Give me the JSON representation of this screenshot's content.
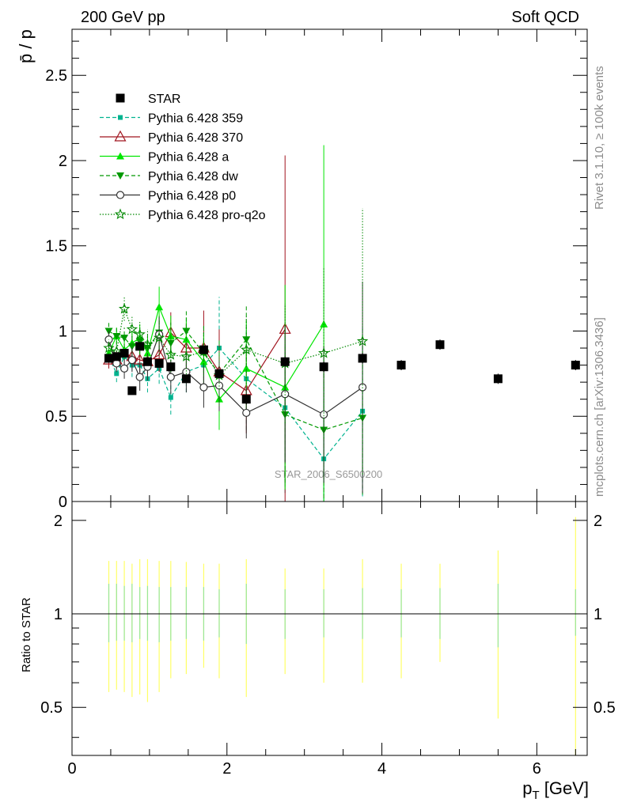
{
  "header": {
    "left": "200 GeV pp",
    "right": "Soft QCD"
  },
  "side_text": {
    "rivet": "Rivet 3.1.10, ≥ 100k events",
    "mcplots": "mcplots.cern.ch [arXiv:1306.3436]"
  },
  "watermark": "STAR_2006_S6500200",
  "chart_data": [
    {
      "type": "scatter",
      "panel": "main",
      "ylabel": "p̄ / p",
      "xlabel": "",
      "xlim": [
        0,
        6.65
      ],
      "ylim": [
        0,
        2.77
      ],
      "yticks": [
        0,
        0.5,
        1,
        1.5,
        2,
        2.5
      ],
      "ytick_labels": [
        "0",
        "0.5",
        "1",
        "1.5",
        "2",
        "2.5"
      ],
      "legend_position": "top-left",
      "series": [
        {
          "name": "STAR",
          "color": "#000000",
          "marker": "square",
          "line": "none",
          "x": [
            0.475,
            0.575,
            0.675,
            0.775,
            0.875,
            0.975,
            1.125,
            1.275,
            1.475,
            1.7,
            1.9,
            2.25,
            2.75,
            3.25,
            3.75,
            4.25,
            4.75,
            5.5,
            6.5
          ],
          "y": [
            0.84,
            0.85,
            0.87,
            0.65,
            0.91,
            0.82,
            0.81,
            0.79,
            0.72,
            0.89,
            0.75,
            0.6,
            0.82,
            0.79,
            0.84,
            0.8,
            0.92,
            0.72,
            0.8
          ],
          "err": [
            0.02,
            0.02,
            0.02,
            0.02,
            0.02,
            0.02,
            0.02,
            0.02,
            0.02,
            0.02,
            0.03,
            0.03,
            0.03,
            0.03,
            0.03,
            0.03,
            0.03,
            0.03,
            0.03
          ]
        },
        {
          "name": "Pythia 6.428 359",
          "color": "#00b38f",
          "marker": "small-square",
          "line": "dashed",
          "x": [
            0.475,
            0.575,
            0.675,
            0.775,
            0.875,
            0.975,
            1.125,
            1.275,
            1.475,
            1.7,
            1.9,
            2.25,
            2.75,
            3.25,
            3.75
          ],
          "y": [
            0.85,
            0.75,
            0.85,
            0.8,
            0.8,
            0.72,
            0.78,
            0.61,
            0.76,
            0.8,
            0.9,
            0.72,
            0.55,
            0.25,
            0.53
          ],
          "err": [
            0.05,
            0.05,
            0.06,
            0.07,
            0.08,
            0.08,
            0.09,
            0.1,
            0.12,
            0.15,
            0.3,
            0.3,
            0.5,
            0.45,
            0.5
          ]
        },
        {
          "name": "Pythia 6.428 370",
          "color": "#a0141e",
          "marker": "open-triangle",
          "line": "solid",
          "x": [
            0.475,
            0.575,
            0.675,
            0.775,
            0.875,
            0.975,
            1.125,
            1.275,
            1.475,
            1.7,
            1.9,
            2.25,
            2.75
          ],
          "y": [
            0.83,
            0.83,
            0.87,
            0.85,
            0.83,
            0.82,
            0.86,
            0.99,
            0.9,
            0.9,
            0.76,
            0.65,
            1.01
          ],
          "err": [
            0.05,
            0.05,
            0.06,
            0.07,
            0.08,
            0.08,
            0.1,
            0.12,
            0.15,
            0.22,
            0.25,
            0.25,
            1.02
          ]
        },
        {
          "name": "Pythia 6.428 a",
          "color": "#00e600",
          "marker": "triangle-up",
          "line": "solid",
          "x": [
            0.475,
            0.575,
            0.675,
            0.775,
            0.875,
            0.975,
            1.125,
            1.275,
            1.475,
            1.7,
            1.9,
            2.25,
            2.75,
            3.25
          ],
          "y": [
            0.87,
            0.97,
            0.89,
            0.93,
            0.96,
            0.87,
            1.14,
            0.97,
            0.95,
            0.82,
            0.6,
            0.78,
            0.67,
            1.04
          ],
          "err": [
            0.05,
            0.05,
            0.06,
            0.07,
            0.08,
            0.1,
            0.12,
            0.12,
            0.13,
            0.17,
            0.18,
            0.28,
            0.6,
            1.05
          ]
        },
        {
          "name": "Pythia 6.428 dw",
          "color": "#009900",
          "marker": "triangle-down",
          "line": "dashed",
          "x": [
            0.475,
            0.575,
            0.675,
            0.775,
            0.875,
            0.975,
            1.125,
            1.275,
            1.475,
            1.7,
            1.9,
            2.25,
            2.75,
            3.25,
            3.75
          ],
          "y": [
            1.0,
            0.97,
            0.96,
            0.91,
            0.94,
            0.9,
            0.99,
            0.93,
            1.0,
            0.87,
            0.75,
            0.95,
            0.51,
            0.42,
            0.49
          ],
          "err": [
            0.05,
            0.05,
            0.06,
            0.07,
            0.08,
            0.09,
            0.1,
            0.12,
            0.13,
            0.16,
            0.2,
            0.2,
            0.4,
            0.4,
            0.45
          ]
        },
        {
          "name": "Pythia 6.428 p0",
          "color": "#333333",
          "marker": "open-circle",
          "line": "solid",
          "x": [
            0.475,
            0.575,
            0.675,
            0.775,
            0.875,
            0.975,
            1.125,
            1.275,
            1.475,
            1.7,
            1.9,
            2.25,
            2.75,
            3.25,
            3.75
          ],
          "y": [
            0.95,
            0.81,
            0.78,
            0.83,
            0.73,
            0.79,
            0.98,
            0.73,
            0.76,
            0.67,
            0.68,
            0.52,
            0.63,
            0.51,
            0.67
          ],
          "err": [
            0.05,
            0.05,
            0.06,
            0.07,
            0.08,
            0.08,
            0.1,
            0.1,
            0.12,
            0.12,
            0.15,
            0.15,
            0.4,
            0.4,
            0.62
          ]
        },
        {
          "name": "Pythia 6.428 pro-q2o",
          "color": "#008800",
          "marker": "open-star",
          "line": "dotted",
          "x": [
            0.475,
            0.575,
            0.675,
            0.775,
            0.875,
            0.975,
            1.125,
            1.275,
            1.475,
            1.7,
            1.9,
            2.25,
            2.75,
            3.25,
            3.75
          ],
          "y": [
            0.9,
            0.88,
            1.13,
            1.01,
            0.98,
            0.92,
            0.96,
            0.86,
            0.85,
            0.88,
            0.74,
            0.89,
            0.81,
            0.87,
            0.94
          ],
          "err": [
            0.05,
            0.05,
            0.07,
            0.08,
            0.08,
            0.09,
            0.1,
            0.1,
            0.12,
            0.14,
            0.18,
            0.2,
            0.35,
            0.5,
            0.78
          ]
        }
      ]
    },
    {
      "type": "scatter",
      "panel": "ratio",
      "ylabel": "Ratio to STAR",
      "xlabel": "p_T [GeV]",
      "xlim": [
        0,
        6.65
      ],
      "ylim": [
        0.35,
        2.3
      ],
      "xticks": [
        0,
        2,
        4,
        6
      ],
      "xtick_labels": [
        "0",
        "2",
        "4",
        "6"
      ],
      "yticks": [
        0.5,
        1,
        2
      ],
      "ytick_labels": [
        "0.5",
        "1",
        "2"
      ],
      "reference_line": 1,
      "bands": {
        "x": [
          0.475,
          0.575,
          0.675,
          0.775,
          0.875,
          0.975,
          1.125,
          1.275,
          1.475,
          1.7,
          1.9,
          2.25,
          2.75,
          3.25,
          3.75,
          4.25,
          4.75,
          5.5,
          6.5
        ],
        "stat_lo": [
          0.81,
          0.82,
          0.82,
          0.81,
          0.83,
          0.82,
          0.81,
          0.82,
          0.83,
          0.82,
          0.84,
          0.8,
          0.83,
          0.84,
          0.83,
          0.84,
          0.83,
          0.78,
          0.85
        ],
        "stat_hi": [
          1.25,
          1.25,
          1.23,
          1.25,
          1.22,
          1.23,
          1.22,
          1.22,
          1.22,
          1.22,
          1.2,
          1.25,
          1.2,
          1.2,
          1.21,
          1.2,
          1.21,
          1.25,
          1.2
        ],
        "total_lo": [
          0.56,
          0.57,
          0.56,
          0.54,
          0.55,
          0.52,
          0.56,
          0.62,
          0.64,
          0.67,
          0.62,
          0.54,
          0.64,
          0.6,
          0.6,
          0.62,
          0.7,
          0.46,
          0.35
        ],
        "total_hi": [
          1.48,
          1.48,
          1.48,
          1.45,
          1.5,
          1.5,
          1.48,
          1.48,
          1.47,
          1.45,
          1.45,
          1.5,
          1.4,
          1.4,
          1.5,
          1.45,
          1.45,
          1.6,
          2.05
        ],
        "stat_color": "#99e699",
        "total_color": "#ffff66"
      }
    }
  ]
}
